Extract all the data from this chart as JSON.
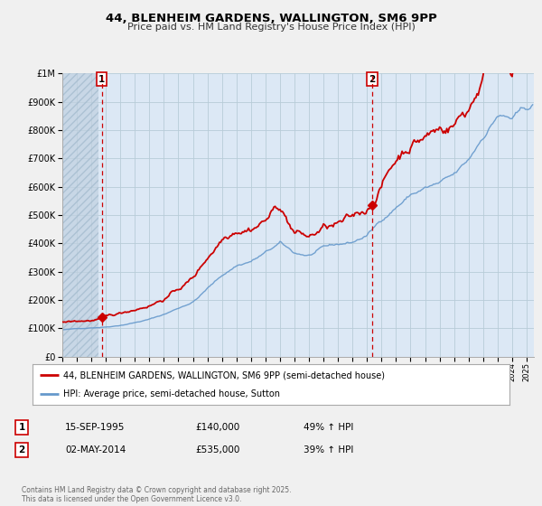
{
  "title": "44, BLENHEIM GARDENS, WALLINGTON, SM6 9PP",
  "subtitle": "Price paid vs. HM Land Registry's House Price Index (HPI)",
  "bg_color": "#f0f0f0",
  "plot_bg_color": "#dce8f5",
  "hatch_color": "#c0d0e0",
  "grid_color": "#b8ccd8",
  "red_color": "#cc0000",
  "blue_color": "#6699cc",
  "vline_color": "#cc0000",
  "marker1_x": 1995.71,
  "marker1_y": 140000,
  "marker2_x": 2014.34,
  "marker2_y": 535000,
  "vline1_x": 1995.71,
  "vline2_x": 2014.34,
  "xmin": 1993.0,
  "xmax": 2025.5,
  "ymin": 0,
  "ymax": 1000000,
  "legend_line1": "44, BLENHEIM GARDENS, WALLINGTON, SM6 9PP (semi-detached house)",
  "legend_line2": "HPI: Average price, semi-detached house, Sutton",
  "table_row1": [
    "1",
    "15-SEP-1995",
    "£140,000",
    "49% ↑ HPI"
  ],
  "table_row2": [
    "2",
    "02-MAY-2014",
    "£535,000",
    "39% ↑ HPI"
  ],
  "footer": "Contains HM Land Registry data © Crown copyright and database right 2025.\nThis data is licensed under the Open Government Licence v3.0.",
  "yticks": [
    0,
    100000,
    200000,
    300000,
    400000,
    500000,
    600000,
    700000,
    800000,
    900000,
    1000000
  ],
  "ytick_labels": [
    "£0",
    "£100K",
    "£200K",
    "£300K",
    "£400K",
    "£500K",
    "£600K",
    "£700K",
    "£800K",
    "£900K",
    "£1M"
  ],
  "hatch_end_x": 1995.5,
  "noise_seed": 42
}
